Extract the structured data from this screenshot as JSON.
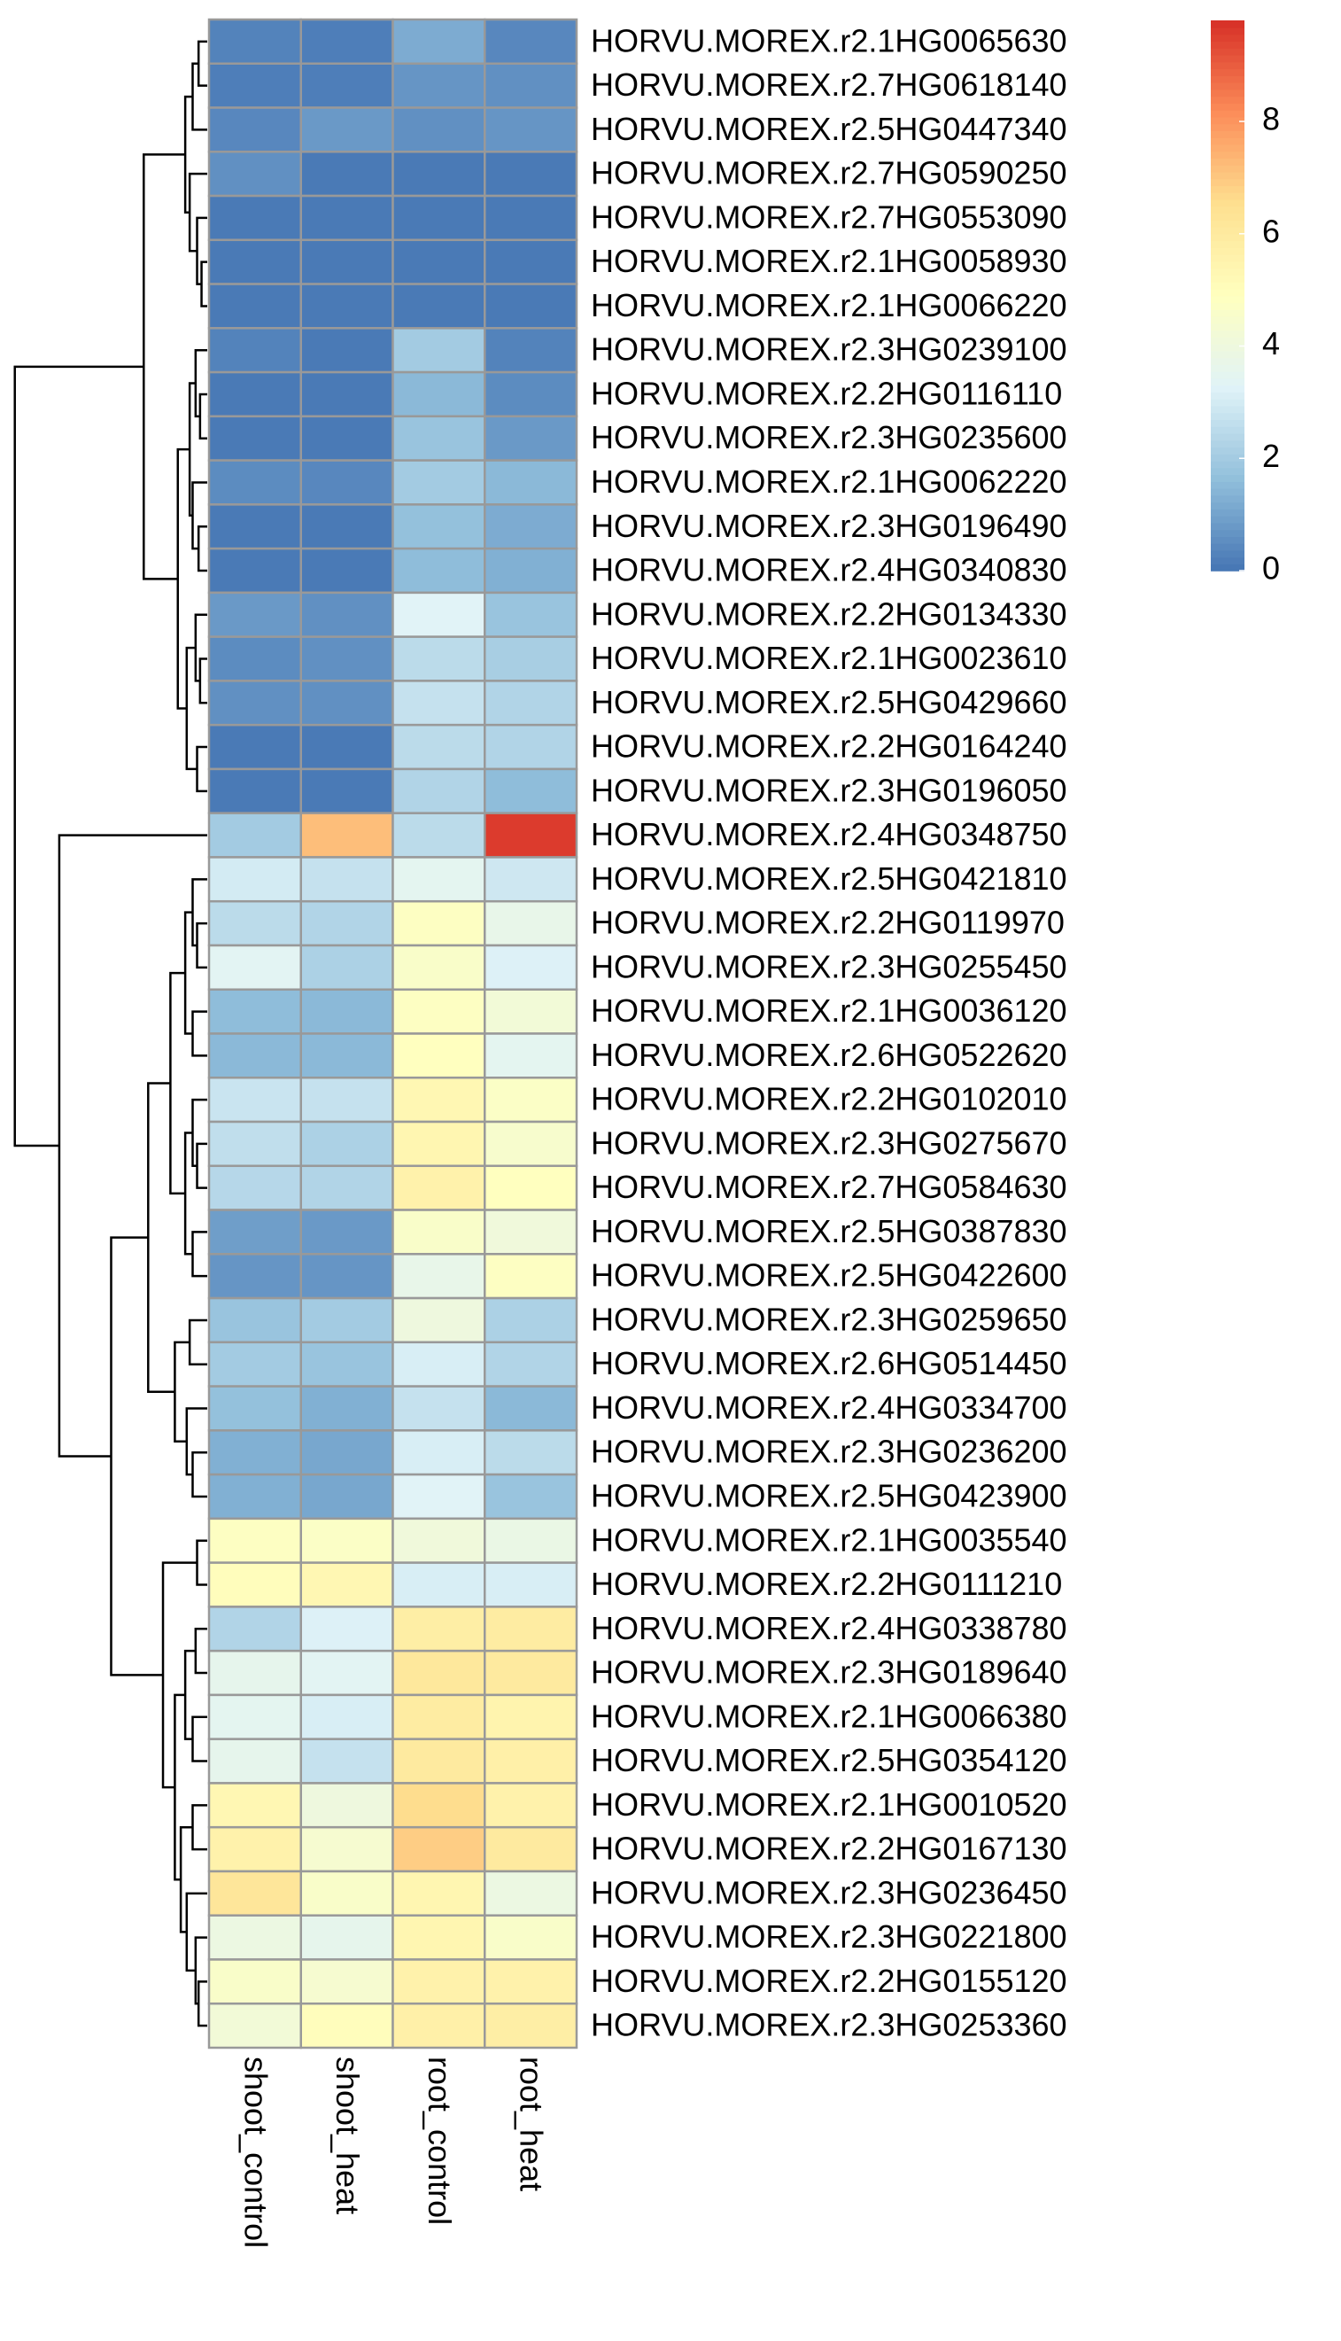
{
  "chart_data": {
    "type": "heatmap",
    "rows": [
      "HORVU.MOREX.r2.1HG0065630",
      "HORVU.MOREX.r2.7HG0618140",
      "HORVU.MOREX.r2.5HG0447340",
      "HORVU.MOREX.r2.7HG0590250",
      "HORVU.MOREX.r2.7HG0553090",
      "HORVU.MOREX.r2.1HG0058930",
      "HORVU.MOREX.r2.1HG0066220",
      "HORVU.MOREX.r2.3HG0239100",
      "HORVU.MOREX.r2.2HG0116110",
      "HORVU.MOREX.r2.3HG0235600",
      "HORVU.MOREX.r2.1HG0062220",
      "HORVU.MOREX.r2.3HG0196490",
      "HORVU.MOREX.r2.4HG0340830",
      "HORVU.MOREX.r2.2HG0134330",
      "HORVU.MOREX.r2.1HG0023610",
      "HORVU.MOREX.r2.5HG0429660",
      "HORVU.MOREX.r2.2HG0164240",
      "HORVU.MOREX.r2.3HG0196050",
      "HORVU.MOREX.r2.4HG0348750",
      "HORVU.MOREX.r2.5HG0421810",
      "HORVU.MOREX.r2.2HG0119970",
      "HORVU.MOREX.r2.3HG0255450",
      "HORVU.MOREX.r2.1HG0036120",
      "HORVU.MOREX.r2.6HG0522620",
      "HORVU.MOREX.r2.2HG0102010",
      "HORVU.MOREX.r2.3HG0275670",
      "HORVU.MOREX.r2.7HG0584630",
      "HORVU.MOREX.r2.5HG0387830",
      "HORVU.MOREX.r2.5HG0422600",
      "HORVU.MOREX.r2.3HG0259650",
      "HORVU.MOREX.r2.6HG0514450",
      "HORVU.MOREX.r2.4HG0334700",
      "HORVU.MOREX.r2.3HG0236200",
      "HORVU.MOREX.r2.5HG0423900",
      "HORVU.MOREX.r2.1HG0035540",
      "HORVU.MOREX.r2.2HG0111210",
      "HORVU.MOREX.r2.4HG0338780",
      "HORVU.MOREX.r2.3HG0189640",
      "HORVU.MOREX.r2.1HG0066380",
      "HORVU.MOREX.r2.5HG0354120",
      "HORVU.MOREX.r2.1HG0010520",
      "HORVU.MOREX.r2.2HG0167130",
      "HORVU.MOREX.r2.3HG0236450",
      "HORVU.MOREX.r2.3HG0221800",
      "HORVU.MOREX.r2.2HG0155120",
      "HORVU.MOREX.r2.3HG0253360"
    ],
    "columns": [
      "shoot_control",
      "shoot_heat",
      "root_control",
      "root_heat"
    ],
    "values": [
      [
        0.3,
        0.2,
        1.2,
        0.4
      ],
      [
        0.2,
        0.2,
        0.7,
        0.6
      ],
      [
        0.4,
        0.8,
        0.6,
        0.7
      ],
      [
        0.6,
        0.1,
        0.1,
        0.1
      ],
      [
        0.1,
        0.1,
        0.1,
        0.1
      ],
      [
        0.1,
        0.1,
        0.1,
        0.1
      ],
      [
        0.1,
        0.1,
        0.1,
        0.1
      ],
      [
        0.3,
        0.1,
        2.0,
        0.3
      ],
      [
        0.1,
        0.1,
        1.5,
        0.5
      ],
      [
        0.1,
        0.1,
        1.8,
        0.8
      ],
      [
        0.5,
        0.4,
        2.0,
        1.5
      ],
      [
        0.1,
        0.1,
        1.7,
        1.2
      ],
      [
        0.1,
        0.1,
        1.6,
        1.3
      ],
      [
        0.8,
        0.6,
        3.3,
        1.8
      ],
      [
        0.5,
        0.6,
        2.5,
        2.1
      ],
      [
        0.6,
        0.6,
        2.7,
        2.3
      ],
      [
        0.1,
        0.1,
        2.5,
        2.3
      ],
      [
        0.1,
        0.1,
        2.3,
        1.6
      ],
      [
        2.0,
        7.2,
        2.5,
        9.6
      ],
      [
        3.0,
        2.7,
        3.5,
        2.9
      ],
      [
        2.5,
        2.3,
        4.8,
        3.7
      ],
      [
        3.4,
        2.2,
        4.6,
        3.2
      ],
      [
        1.6,
        1.5,
        4.8,
        4.2
      ],
      [
        1.5,
        1.5,
        4.9,
        3.5
      ],
      [
        2.8,
        2.7,
        5.3,
        4.7
      ],
      [
        2.6,
        2.2,
        5.4,
        4.5
      ],
      [
        2.4,
        2.3,
        5.6,
        4.9
      ],
      [
        0.9,
        0.8,
        4.6,
        4.1
      ],
      [
        0.7,
        0.7,
        3.7,
        4.8
      ],
      [
        1.8,
        2.0,
        4.0,
        2.2
      ],
      [
        2.0,
        1.8,
        3.1,
        2.3
      ],
      [
        1.7,
        1.3,
        2.7,
        1.5
      ],
      [
        1.3,
        1.1,
        3.1,
        2.5
      ],
      [
        1.3,
        1.1,
        3.3,
        1.8
      ],
      [
        4.8,
        4.7,
        4.1,
        3.8
      ],
      [
        5.0,
        5.3,
        3.1,
        3.1
      ],
      [
        2.3,
        3.2,
        5.8,
        5.9
      ],
      [
        3.6,
        3.4,
        6.1,
        6.0
      ],
      [
        3.5,
        3.1,
        5.9,
        5.5
      ],
      [
        3.6,
        2.7,
        6.0,
        5.7
      ],
      [
        5.3,
        4.0,
        6.6,
        5.6
      ],
      [
        5.6,
        4.4,
        6.9,
        6.0
      ],
      [
        6.2,
        4.6,
        5.4,
        3.9
      ],
      [
        3.9,
        3.6,
        5.4,
        4.6
      ],
      [
        4.6,
        4.4,
        5.6,
        5.6
      ],
      [
        4.2,
        5.0,
        5.7,
        5.8
      ]
    ],
    "zlim": [
      0,
      9.8
    ],
    "zticks": [
      0,
      2,
      4,
      6,
      8
    ],
    "colors": [
      "#4575b4",
      "#91bfdb",
      "#e0f3f8",
      "#ffffbf",
      "#fee090",
      "#fc8d59",
      "#d73027"
    ],
    "cell_border": "#999999"
  }
}
